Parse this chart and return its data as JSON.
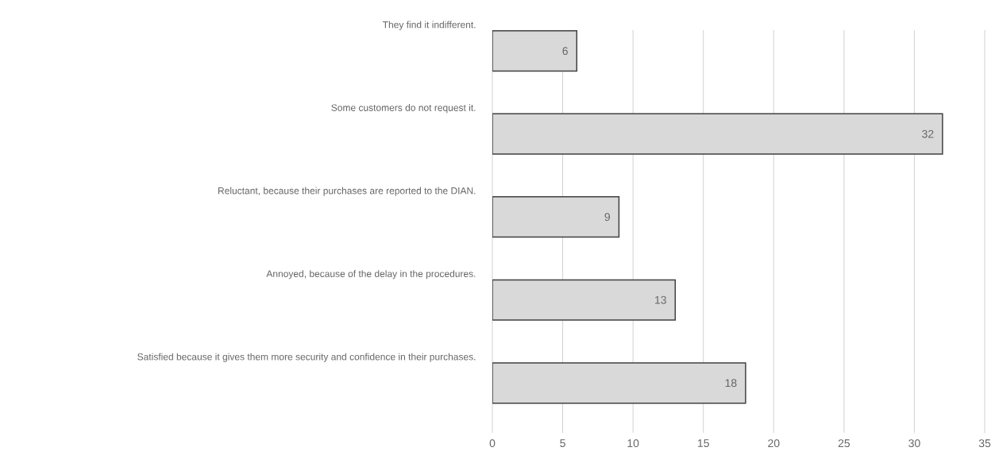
{
  "chart_data": {
    "type": "bar",
    "orientation": "horizontal",
    "categories": [
      "They find it indifferent.",
      "Some customers do not request it.",
      "Reluctant, because their purchases are reported to the DIAN.",
      "Annoyed, because of the delay in the procedures.",
      "Satisfied because it gives them more security and confidence in their purchases."
    ],
    "values": [
      6,
      32,
      9,
      13,
      18
    ],
    "color": "#d9d9d9",
    "xlim": [
      0,
      35
    ],
    "xticks": [
      0,
      5,
      10,
      15,
      20,
      25,
      30,
      35
    ],
    "grid": "x",
    "data_labels": true
  }
}
